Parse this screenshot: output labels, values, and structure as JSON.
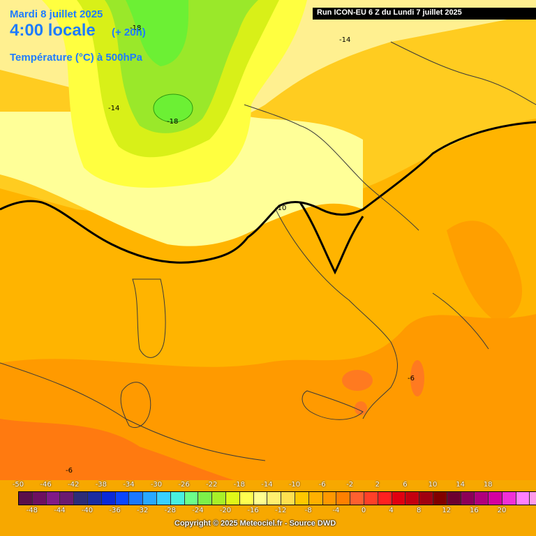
{
  "header": {
    "date": "Mardi 8 juillet 2025",
    "time": "4:00 locale",
    "lead": "(+ 20h)",
    "parameter": "Température (°C) à 500hPa",
    "run": "Run ICON-EU 6 Z du Lundi 7 juillet 2025"
  },
  "footer": {
    "copyright": "Copyright © 2025 Meteociel.fr - Source DWD"
  },
  "contour_labels": [
    "-18",
    "-14",
    "-18",
    "-14",
    "-10",
    "-6",
    "-6"
  ],
  "legend": {
    "colors": [
      "#5a0f4a",
      "#6d1060",
      "#801a88",
      "#6a1a70",
      "#2c2c78",
      "#1b2ca0",
      "#0a2ad8",
      "#0a46ff",
      "#1a78ff",
      "#28a8ff",
      "#38d0ff",
      "#48f0e0",
      "#6cff8a",
      "#7cf04a",
      "#a8f028",
      "#e0f818",
      "#ffff50",
      "#ffff90",
      "#fff070",
      "#ffe050",
      "#ffc800",
      "#ffb000",
      "#ff9800",
      "#ff8000",
      "#ff6030",
      "#ff4028",
      "#ff2020",
      "#e00010",
      "#c40010",
      "#a00010",
      "#800000",
      "#6c0030",
      "#8c0058",
      "#b0007c",
      "#d400a0",
      "#f030d8",
      "#ff80ff",
      "#ff9ce8"
    ],
    "top_labels": [
      "-50",
      "-46",
      "-42",
      "-38",
      "-34",
      "-30",
      "-26",
      "-22",
      "-18",
      "-14",
      "-10",
      "-6",
      "-2",
      "2",
      "6",
      "10",
      "14",
      "18"
    ],
    "bottom_labels": [
      "-48",
      "-44",
      "-40",
      "-36",
      "-32",
      "-28",
      "-24",
      "-20",
      "-16",
      "-12",
      "-8",
      "-4",
      "0",
      "4",
      "8",
      "12",
      "16",
      "20"
    ]
  },
  "colors": {
    "cold_green": "#6cf034",
    "green": "#9ae82a",
    "yellow_green": "#d8f018",
    "yellow": "#ffff40",
    "pale_yellow": "#ffff90",
    "light_orange": "#ffe050",
    "orange": "#ffc000",
    "dark_orange": "#ffaa00",
    "deep_orange": "#ff8a00",
    "red_orange": "#ff6a20",
    "coast": "#3a3a3a",
    "contour": "#000000"
  }
}
